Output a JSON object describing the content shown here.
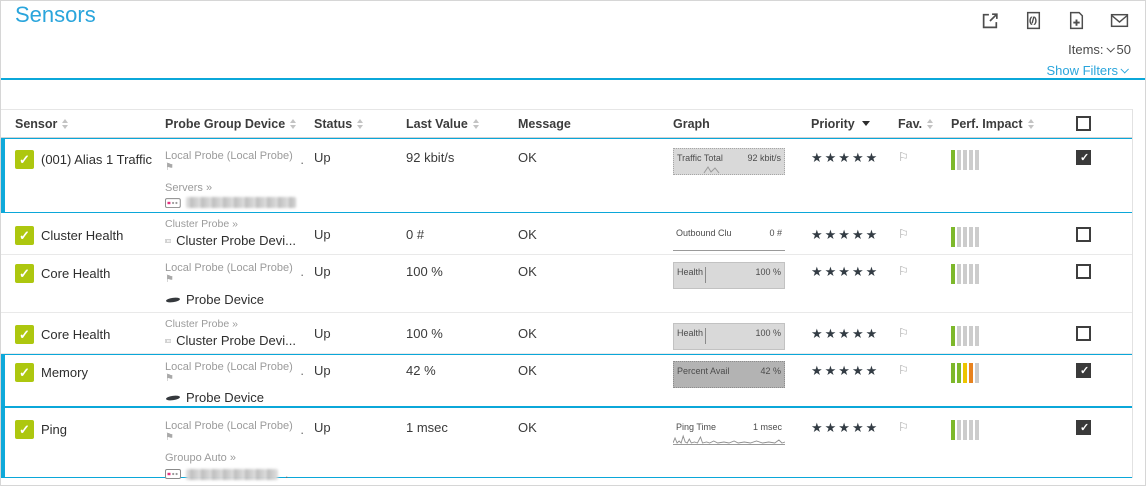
{
  "header": {
    "title": "Sensors",
    "items_label": "Items:",
    "items_value": "50",
    "show_filters_label": "Show Filters",
    "toolbar_icons": [
      "open-in-new-window",
      "xml-export",
      "add-report",
      "email"
    ]
  },
  "colors": {
    "accent_teal": "#0ba7d9",
    "link_blue": "#2aa5dc",
    "sensor_up_green": "#adc70f",
    "perf_green": "#7db82b",
    "perf_yellow": "#edc500",
    "perf_orange": "#e8821e",
    "priority_star": "#333c44"
  },
  "table": {
    "columns": [
      {
        "label": "Sensor",
        "sort": "both"
      },
      {
        "label": "Probe Group Device",
        "sort": "both"
      },
      {
        "label": "Status",
        "sort": "both"
      },
      {
        "label": "Last Value",
        "sort": "both"
      },
      {
        "label": "Message",
        "sort": "none"
      },
      {
        "label": "Graph",
        "sort": "none"
      },
      {
        "label": "Priority",
        "sort": "desc"
      },
      {
        "label": "Fav.",
        "sort": "both"
      },
      {
        "label": "Perf. Impact",
        "sort": "both"
      }
    ],
    "rows": [
      {
        "name": "(001) Alias 1 Traffic",
        "probe": "Local Probe (Local Probe)",
        "probe_suffix": ".",
        "group": "Servers »",
        "device_redacted": true,
        "status": "Up",
        "last_value": "92 kbit/s",
        "message": "OK",
        "graph": {
          "label": "Traffic Total",
          "value": "92 kbit/s"
        },
        "priority": "★★★★★",
        "perf_impact": [
          "green",
          "gray",
          "gray",
          "gray",
          "gray"
        ],
        "checked": true,
        "selected": true
      },
      {
        "name": "Cluster Health",
        "group": "Cluster Probe »",
        "device": "Cluster Probe Devi...",
        "status": "Up",
        "last_value": "0 #",
        "message": "OK",
        "graph": {
          "label": "Outbound Clu",
          "value": "0 #"
        },
        "priority": "★★★★★",
        "perf_impact": [
          "green",
          "gray",
          "gray",
          "gray",
          "gray"
        ],
        "checked": false,
        "selected": false
      },
      {
        "name": "Core Health",
        "probe": "Local Probe (Local Probe)",
        "probe_suffix": ".",
        "device": "Probe Device",
        "status": "Up",
        "last_value": "100 %",
        "message": "OK",
        "graph": {
          "label": "Health",
          "value": "100 %"
        },
        "priority": "★★★★★",
        "perf_impact": [
          "green",
          "gray",
          "gray",
          "gray",
          "gray"
        ],
        "checked": false,
        "selected": false
      },
      {
        "name": "Core Health",
        "group": "Cluster Probe »",
        "device": "Cluster Probe Devi...",
        "status": "Up",
        "last_value": "100 %",
        "message": "OK",
        "graph": {
          "label": "Health",
          "value": "100 %"
        },
        "priority": "★★★★★",
        "perf_impact": [
          "green",
          "gray",
          "gray",
          "gray",
          "gray"
        ],
        "checked": false,
        "selected": false
      },
      {
        "name": "Memory",
        "probe": "Local Probe (Local Probe)",
        "probe_suffix": ".",
        "device": "Probe Device",
        "status": "Up",
        "last_value": "42 %",
        "message": "OK",
        "graph": {
          "label": "Percent Avail",
          "value": "42 %"
        },
        "priority": "★★★★★",
        "perf_impact": [
          "green",
          "green",
          "yellow",
          "orange",
          "gray"
        ],
        "checked": true,
        "selected": true
      },
      {
        "name": "Ping",
        "probe": "Local Probe (Local Probe)",
        "probe_suffix": ".",
        "group": "Groupo Auto »",
        "device_redacted": true,
        "device_suffix": ".",
        "status": "Up",
        "last_value": "1 msec",
        "message": "OK",
        "graph": {
          "label": "Ping Time",
          "value": "1 msec"
        },
        "priority": "★★★★★",
        "perf_impact": [
          "green",
          "gray",
          "gray",
          "gray",
          "gray"
        ],
        "checked": true,
        "selected": true
      }
    ]
  }
}
